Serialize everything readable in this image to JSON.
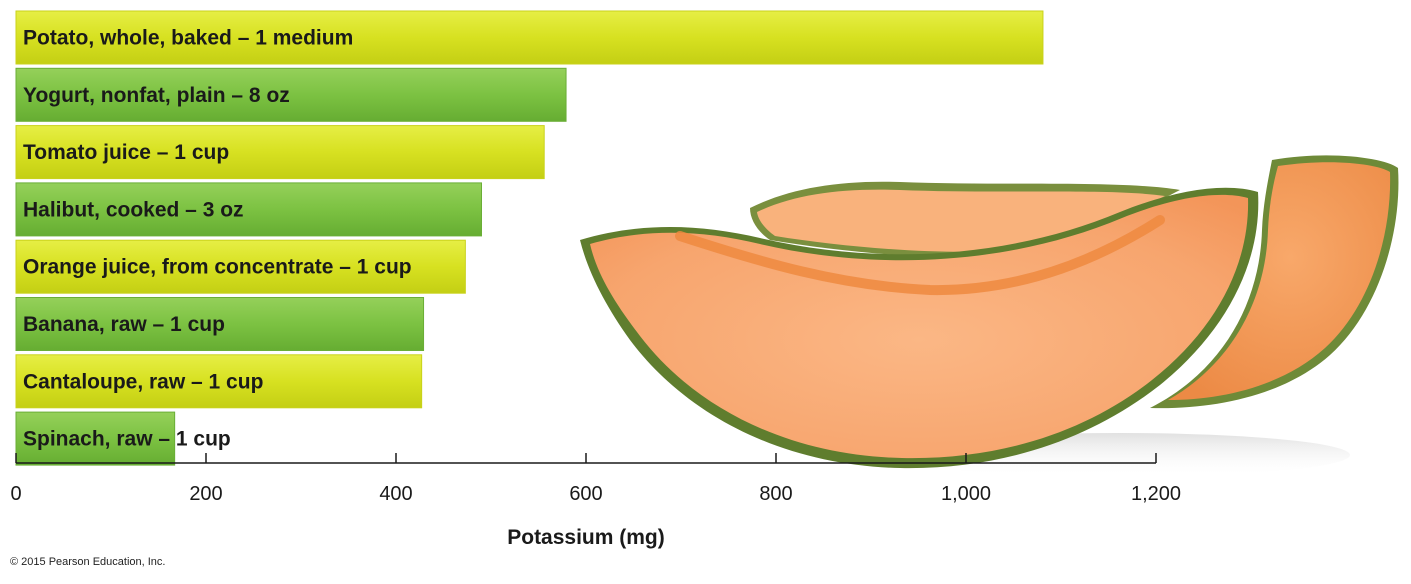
{
  "chart_data": {
    "type": "bar",
    "orientation": "horizontal",
    "categories": [
      "Potato, whole, baked – 1 medium",
      "Yogurt, nonfat, plain – 8 oz",
      "Tomato juice – 1 cup",
      "Halibut, cooked – 3 oz",
      "Orange juice, from concentrate – 1 cup",
      "Banana, raw – 1 cup",
      "Cantaloupe, raw – 1 cup",
      "Spinach, raw – 1 cup"
    ],
    "values": [
      1081,
      579,
      556,
      490,
      473,
      429,
      427,
      167
    ],
    "title": "",
    "xlabel": "Potassium (mg)",
    "ylabel": "",
    "xlim": [
      0,
      1200
    ],
    "xticks": [
      0,
      200,
      400,
      600,
      800,
      1000,
      1200
    ],
    "xtick_labels": [
      "0",
      "200",
      "400",
      "600",
      "800",
      "1,000",
      "1,200"
    ],
    "grid": false,
    "bar_colors": [
      "#d7e121",
      "#7cc242"
    ],
    "decorative_image": "cantaloupe-slices"
  },
  "copyright": "© 2015 Pearson Education, Inc."
}
